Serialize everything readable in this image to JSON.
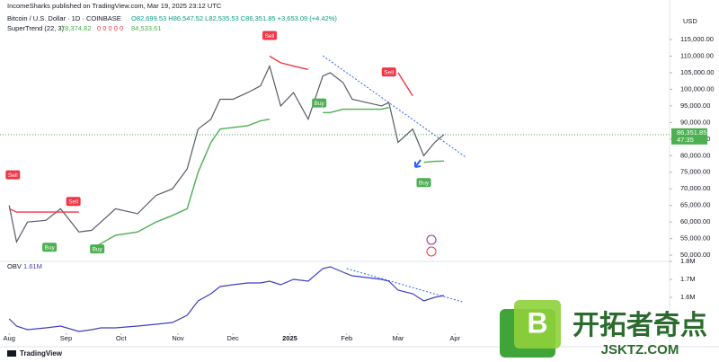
{
  "header": {
    "publisher": "IncomeSharks published on TradingView.com, Mar 19, 2025 23:12 UTC",
    "symbol": "Bitcoin / U.S. Dollar · 1D · COINBASE",
    "ohlc": "O82,699.53 H86,547.52 L82,535.53 C86,351.85 +3,653.09 (+4.42%)",
    "indicator": "SuperTrend (22, 3)",
    "indicator_values": [
      "78,374.82",
      "0 0 0 0 0",
      "84,533.61"
    ],
    "brand": "TradingView",
    "watermark": "开拓者奇点",
    "watermark_url": "JSKTZ.COM"
  },
  "chart_data": [
    {
      "type": "line",
      "currency": "USD",
      "x": [
        0,
        4,
        10,
        20,
        28,
        38,
        45,
        50,
        58,
        70,
        80,
        89,
        97,
        103,
        110,
        115,
        122,
        130,
        137,
        142,
        148,
        155,
        163,
        171,
        175,
        182,
        187,
        195,
        203,
        207,
        212,
        220,
        226,
        232,
        237
      ],
      "xlim": [
        -5,
        360
      ],
      "ylim": [
        48400,
        121500
      ],
      "yticks": [
        {
          "value": 50000,
          "label": "50,000.00"
        },
        {
          "value": 55000,
          "label": "55,000.00"
        },
        {
          "value": 60000,
          "label": "60,000.00"
        },
        {
          "value": 65000,
          "label": "65,000.00"
        },
        {
          "value": 70000,
          "label": "70,000.00"
        },
        {
          "value": 75000,
          "label": "75,000.00"
        },
        {
          "value": 80000,
          "label": "80,000.00"
        },
        {
          "value": 85000,
          "label": "85,000.00"
        },
        {
          "value": 90000,
          "label": "90,000.00"
        },
        {
          "value": 95000,
          "label": "95,000.00"
        },
        {
          "value": 100000,
          "label": "100,000.00"
        },
        {
          "value": 105000,
          "label": "105,000.00"
        },
        {
          "value": 110000,
          "label": "110,000.00"
        },
        {
          "value": 115000,
          "label": "115,000.00"
        }
      ],
      "series": [
        {
          "color": "#555b66",
          "values": [
            65000,
            54000,
            60000,
            60500,
            64000,
            57000,
            57500,
            60000,
            64000,
            62500,
            68000,
            70000,
            76000,
            88000,
            91000,
            97000,
            97000,
            99000,
            101000,
            107000,
            95000,
            99000,
            91000,
            104000,
            105000,
            102000,
            97000,
            96000,
            95000,
            96000,
            84000,
            88000,
            80000,
            84000,
            86351.85
          ]
        },
        {
          "color": "#4caf50",
          "values": [
            null,
            null,
            null,
            null,
            null,
            null,
            52000,
            53500,
            56000,
            57000,
            60000,
            62000,
            64000,
            75000,
            84000,
            88000,
            88500,
            89000,
            90500,
            91000,
            null,
            null,
            null,
            93000,
            93000,
            94000,
            94000,
            94000,
            94000,
            94500,
            null,
            null,
            78000,
            78300,
            78374.82
          ]
        },
        {
          "color": "#f23645",
          "values": [
            64000,
            63000,
            63000,
            63000,
            63000,
            63000,
            null,
            null,
            null,
            null,
            null,
            null,
            null,
            null,
            null,
            null,
            null,
            null,
            null,
            110000,
            108000,
            107000,
            106000,
            null,
            null,
            null,
            null,
            null,
            null,
            null,
            105000,
            98000,
            null,
            null,
            null
          ]
        }
      ],
      "last_value_label": "86,351.85",
      "countdown": "47:35",
      "last_color": "#4caf50",
      "signals": [
        {
          "label": "Sell",
          "x": 2
        },
        {
          "label": "Buy",
          "x": 22
        },
        {
          "label": "Sell",
          "x": 35
        },
        {
          "label": "Buy",
          "x": 48
        },
        {
          "label": "Sell",
          "x": 142
        },
        {
          "label": "Buy",
          "x": 169
        },
        {
          "label": "Sell",
          "x": 207
        },
        {
          "label": "Buy",
          "x": 226
        }
      ],
      "trendline": {
        "x": [
          171,
          249
        ],
        "y": [
          110100,
          79500
        ],
        "color": "#2962ff"
      }
    },
    {
      "type": "line",
      "title": "OBV",
      "value_label": "1.61M",
      "x": [
        0,
        4,
        10,
        20,
        28,
        38,
        45,
        50,
        58,
        70,
        80,
        89,
        97,
        103,
        110,
        115,
        122,
        130,
        137,
        142,
        148,
        155,
        163,
        171,
        175,
        182,
        187,
        195,
        203,
        207,
        212,
        220,
        226,
        232,
        237
      ],
      "xlim": [
        -5,
        360
      ],
      "ylim": [
        1.4,
        1.8
      ],
      "yticks": [
        {
          "value": 1.6,
          "label": "1.6M"
        },
        {
          "value": 1.7,
          "label": "1.7M"
        },
        {
          "value": 1.8,
          "label": "1.8M"
        }
      ],
      "xticks": [
        {
          "value": 0,
          "label": "Aug"
        },
        {
          "value": 31,
          "label": "Sep"
        },
        {
          "value": 61,
          "label": "Oct"
        },
        {
          "value": 92,
          "label": "Nov"
        },
        {
          "value": 122,
          "label": "Dec"
        },
        {
          "value": 153,
          "label": "2025"
        },
        {
          "value": 184,
          "label": "Feb"
        },
        {
          "value": 212,
          "label": "Mar"
        },
        {
          "value": 243,
          "label": "Apr"
        }
      ],
      "series": [
        {
          "color": "#3f3fbf",
          "values": [
            1.48,
            1.44,
            1.42,
            1.43,
            1.44,
            1.41,
            1.42,
            1.43,
            1.43,
            1.44,
            1.45,
            1.46,
            1.5,
            1.58,
            1.62,
            1.66,
            1.67,
            1.68,
            1.68,
            1.69,
            1.67,
            1.7,
            1.69,
            1.76,
            1.77,
            1.74,
            1.72,
            1.71,
            1.7,
            1.69,
            1.64,
            1.62,
            1.58,
            1.6,
            1.61
          ]
        }
      ],
      "trendline": {
        "x": [
          184,
          247
        ],
        "y": [
          1.76,
          1.575
        ],
        "color": "#2962ff"
      }
    }
  ]
}
